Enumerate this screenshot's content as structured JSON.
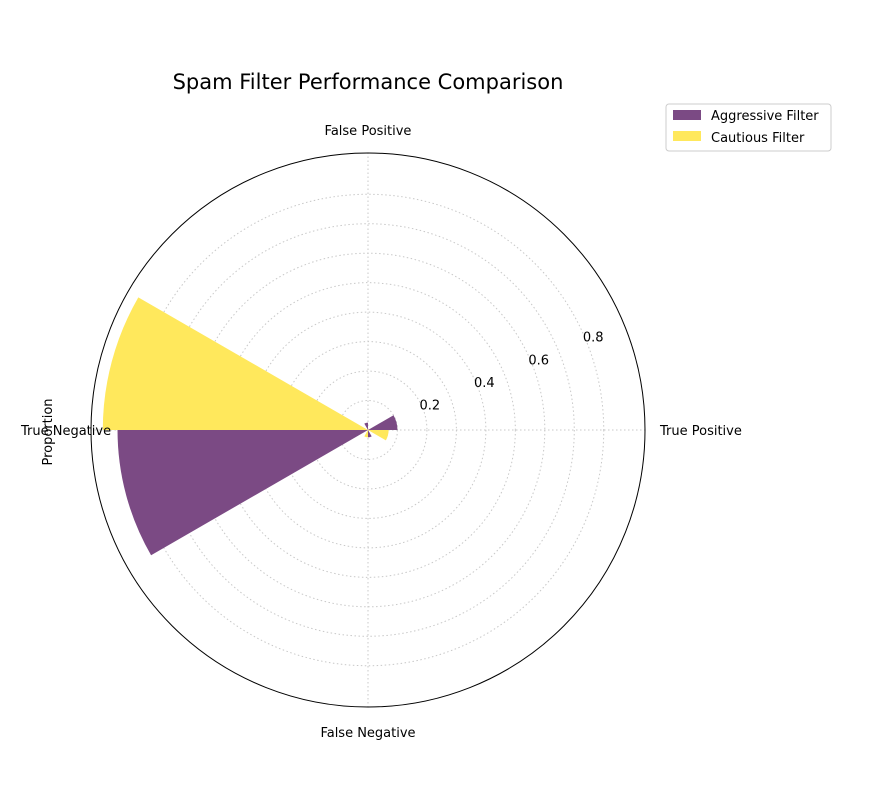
{
  "chart_data": {
    "type": "polar-bar",
    "title": "Spam Filter Performance Comparison",
    "ylabel": "Proportion",
    "categories": [
      "True Positive",
      "False Positive",
      "True Negative",
      "False Negative"
    ],
    "series": [
      {
        "name": "Aggressive Filter",
        "color": "#7b4a84",
        "values": [
          0.1,
          0.025,
          0.85,
          0.025
        ]
      },
      {
        "name": "Cautious Filter",
        "color": "#ffe85c",
        "values": [
          0.07,
          0.005,
          0.9,
          0.025
        ]
      }
    ],
    "r_ticks": [
      "0.2",
      "0.4",
      "0.6",
      "0.8"
    ],
    "r_tick_values": [
      0.2,
      0.4,
      0.6,
      0.8
    ],
    "rlim": [
      0,
      0.94
    ],
    "grid": true,
    "legend_position": "top-right"
  }
}
